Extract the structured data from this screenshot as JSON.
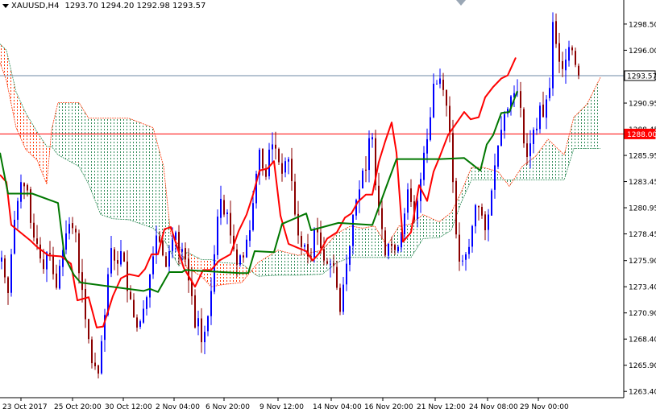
{
  "header": {
    "symbol": "XAUUSD,H4",
    "ohlc": "1293.70 1294.20 1292.98 1293.57"
  },
  "chart_data": {
    "type": "candlestick",
    "symbol": "XAUUSD",
    "timeframe": "H4",
    "title": "XAUUSD,H4",
    "ohlc_last": {
      "open": 1293.7,
      "high": 1294.2,
      "low": 1292.98,
      "close": 1293.57
    },
    "ylim": [
      1262.8,
      1300.8
    ],
    "y_ticks": [
      "1298.50",
      "1296.00",
      "1293.45",
      "1290.95",
      "1288.45",
      "1285.95",
      "1283.45",
      "1280.95",
      "1278.45",
      "1275.90",
      "1273.40",
      "1270.90",
      "1268.40",
      "1265.90",
      "1263.40"
    ],
    "x_ticks": [
      "23 Oct 2017",
      "25 Oct 20:00",
      "30 Oct 12:00",
      "2 Nov 04:00",
      "6 Nov 20:00",
      "9 Nov 12:00",
      "14 Nov 04:00",
      "16 Nov 20:00",
      "21 Nov 12:00",
      "24 Nov 08:00",
      "29 Nov 00:00"
    ],
    "price_lines": [
      {
        "label": "1293.57",
        "value": 1293.57,
        "color": "#6e8aa5",
        "kind": "bid"
      },
      {
        "label": "1288.00",
        "value": 1288.0,
        "color": "#ff0000",
        "kind": "horizontal"
      }
    ],
    "close": [
      1276.2,
      1274.3,
      1272.8,
      1276.5,
      1279.8,
      1281.6,
      1283.4,
      1283.0,
      1282.6,
      1279.5,
      1278.1,
      1277.5,
      1276.1,
      1275.1,
      1276.7,
      1276.5,
      1274.6,
      1273.3,
      1275.4,
      1276.9,
      1278.5,
      1279.4,
      1279.0,
      1278.6,
      1274.7,
      1273.1,
      1270.3,
      1268.4,
      1266.1,
      1265.8,
      1265.1,
      1268.2,
      1270.7,
      1274.6,
      1277.1,
      1275.9,
      1275.6,
      1276.8,
      1275.8,
      1273.0,
      1272.2,
      1270.5,
      1269.5,
      1270.1,
      1271.3,
      1272.4,
      1274.6,
      1276.3,
      1278.3,
      1277.7,
      1276.4,
      1275.3,
      1276.8,
      1277.9,
      1278.6,
      1276.7,
      1277.0,
      1276.0,
      1274.0,
      1272.5,
      1269.5,
      1270.4,
      1268.1,
      1269.1,
      1270.6,
      1273.0,
      1276.5,
      1280.1,
      1281.8,
      1280.3,
      1280.5,
      1278.3,
      1277.0,
      1275.5,
      1276.4,
      1276.2,
      1277.9,
      1278.8,
      1281.4,
      1284.2,
      1286.5,
      1284.7,
      1283.9,
      1286.5,
      1287.0,
      1286.6,
      1285.3,
      1284.2,
      1285.4,
      1285.6,
      1283.5,
      1280.3,
      1278.3,
      1277.2,
      1277.4,
      1276.3,
      1276.3,
      1278.9,
      1278.6,
      1277.1,
      1275.9,
      1275.6,
      1275.6,
      1275.4,
      1273.3,
      1271.0,
      1273.6,
      1275.6,
      1277.3,
      1280.3,
      1281.7,
      1282.7,
      1284.5,
      1284.5,
      1287.6,
      1287.7,
      1283.1,
      1281.0,
      1278.9,
      1276.4,
      1277.5,
      1277.3,
      1276.9,
      1277.2,
      1278.5,
      1280.4,
      1282.7,
      1281.5,
      1279.8,
      1281.6,
      1283.7,
      1286.2,
      1287.5,
      1289.6,
      1292.8,
      1292.8,
      1293.3,
      1292.2,
      1290.7,
      1288.2,
      1283.4,
      1278.4,
      1275.8,
      1275.9,
      1276.5,
      1277.2,
      1279.2,
      1281.2,
      1281.0,
      1280.2,
      1278.8,
      1280.3,
      1282.6,
      1285.0,
      1286.9,
      1288.4,
      1289.9,
      1290.4,
      1291.6,
      1291.9,
      1292.0,
      1290.5,
      1287.1,
      1285.8,
      1287.1,
      1288.4,
      1288.5,
      1290.7,
      1289.6,
      1291.3,
      1292.4,
      1298.7,
      1296.6,
      1294.9,
      1294.2,
      1295.1,
      1296.3,
      1296.0,
      1294.6,
      1293.6
    ],
    "kumo": [
      {
        "x": 0.0,
        "a": 1294.8,
        "b": 1296.6
      },
      {
        "x": 8.0,
        "a": 1293.1,
        "b": 1296.0
      },
      {
        "x": 20.0,
        "a": 1288.6,
        "b": 1292.0
      },
      {
        "x": 32.0,
        "a": 1286.5,
        "b": 1290.0
      },
      {
        "x": 46.0,
        "a": 1285.5,
        "b": 1288.2
      },
      {
        "x": 58.0,
        "a": 1283.2,
        "b": 1286.8
      },
      {
        "x": 64.0,
        "a": 1288.4,
        "b": 1286.8
      },
      {
        "x": 72.0,
        "a": 1291.0,
        "b": 1286.0
      },
      {
        "x": 98.0,
        "a": 1291.0,
        "b": 1284.9
      },
      {
        "x": 110.0,
        "a": 1289.5,
        "b": 1283.2
      },
      {
        "x": 125.0,
        "a": 1289.5,
        "b": 1280.3
      },
      {
        "x": 140.0,
        "a": 1289.5,
        "b": 1279.9
      },
      {
        "x": 160.0,
        "a": 1289.5,
        "b": 1279.8
      },
      {
        "x": 190.0,
        "a": 1288.6,
        "b": 1279.0
      },
      {
        "x": 203.0,
        "a": 1284.9,
        "b": 1278.0
      },
      {
        "x": 212.0,
        "a": 1278.3,
        "b": 1276.7
      },
      {
        "x": 222.0,
        "a": 1277.4,
        "b": 1275.4
      },
      {
        "x": 232.0,
        "a": 1275.2,
        "b": 1276.7
      },
      {
        "x": 250.0,
        "a": 1274.4,
        "b": 1276.0
      },
      {
        "x": 262.0,
        "a": 1273.4,
        "b": 1276.0
      },
      {
        "x": 276.0,
        "a": 1273.6,
        "b": 1275.7
      },
      {
        "x": 300.0,
        "a": 1273.8,
        "b": 1275.6
      },
      {
        "x": 320.0,
        "a": 1275.7,
        "b": 1274.4
      },
      {
        "x": 345.0,
        "a": 1276.9,
        "b": 1274.5
      },
      {
        "x": 370.0,
        "a": 1276.4,
        "b": 1274.5
      },
      {
        "x": 400.0,
        "a": 1276.9,
        "b": 1274.6
      },
      {
        "x": 418.0,
        "a": 1278.5,
        "b": 1275.7
      },
      {
        "x": 435.0,
        "a": 1279.2,
        "b": 1276.2
      },
      {
        "x": 450.0,
        "a": 1279.0,
        "b": 1276.2
      },
      {
        "x": 465.0,
        "a": 1279.2,
        "b": 1276.2
      },
      {
        "x": 480.0,
        "a": 1277.3,
        "b": 1276.2
      },
      {
        "x": 495.0,
        "a": 1279.2,
        "b": 1276.2
      },
      {
        "x": 510.0,
        "a": 1279.4,
        "b": 1276.2
      },
      {
        "x": 525.0,
        "a": 1280.3,
        "b": 1278.0
      },
      {
        "x": 545.0,
        "a": 1279.6,
        "b": 1278.1
      },
      {
        "x": 560.0,
        "a": 1280.5,
        "b": 1278.8
      },
      {
        "x": 572.0,
        "a": 1282.4,
        "b": 1281.4
      },
      {
        "x": 585.0,
        "a": 1284.8,
        "b": 1283.6
      },
      {
        "x": 600.0,
        "a": 1284.8,
        "b": 1283.6
      },
      {
        "x": 618.0,
        "a": 1284.4,
        "b": 1283.6
      },
      {
        "x": 632.0,
        "a": 1283.0,
        "b": 1283.6
      },
      {
        "x": 648.0,
        "a": 1284.9,
        "b": 1283.6
      },
      {
        "x": 665.0,
        "a": 1285.9,
        "b": 1283.6
      },
      {
        "x": 680.0,
        "a": 1287.5,
        "b": 1283.6
      },
      {
        "x": 700.0,
        "a": 1286.0,
        "b": 1283.6
      },
      {
        "x": 712.0,
        "a": 1289.6,
        "b": 1286.6
      },
      {
        "x": 728.0,
        "a": 1290.8,
        "b": 1286.6
      },
      {
        "x": 745.0,
        "a": 1293.4,
        "b": 1286.6
      }
    ],
    "tenkan": [
      [
        0.0,
        1284.1
      ],
      [
        8.0,
        1283.4
      ],
      [
        14.0,
        1279.3
      ],
      [
        38.0,
        1277.8
      ],
      [
        46.0,
        1277.2
      ],
      [
        60.0,
        1276.4
      ],
      [
        76.0,
        1276.3
      ],
      [
        88.0,
        1275.6
      ],
      [
        96.0,
        1272.1
      ],
      [
        110.0,
        1272.4
      ],
      [
        120.0,
        1269.5
      ],
      [
        128.0,
        1269.6
      ],
      [
        140.0,
        1272.5
      ],
      [
        150.0,
        1274.2
      ],
      [
        160.0,
        1274.6
      ],
      [
        172.0,
        1274.4
      ],
      [
        180.0,
        1275.1
      ],
      [
        188.0,
        1276.5
      ],
      [
        196.0,
        1276.5
      ],
      [
        204.0,
        1278.9
      ],
      [
        212.0,
        1279.1
      ],
      [
        228.0,
        1275.2
      ],
      [
        242.0,
        1273.4
      ],
      [
        252.0,
        1275.0
      ],
      [
        262.0,
        1275.0
      ],
      [
        272.0,
        1275.9
      ],
      [
        286.0,
        1276.5
      ],
      [
        296.0,
        1278.7
      ],
      [
        306.0,
        1280.3
      ],
      [
        314.0,
        1282.2
      ],
      [
        322.0,
        1284.5
      ],
      [
        332.0,
        1284.7
      ],
      [
        340.0,
        1285.4
      ],
      [
        348.0,
        1280.2
      ],
      [
        358.0,
        1277.5
      ],
      [
        370.0,
        1277.1
      ],
      [
        380.0,
        1276.8
      ],
      [
        388.0,
        1275.9
      ],
      [
        396.0,
        1276.6
      ],
      [
        406.0,
        1278.0
      ],
      [
        418.0,
        1278.6
      ],
      [
        428.0,
        1280.0
      ],
      [
        436.0,
        1280.4
      ],
      [
        444.0,
        1281.5
      ],
      [
        454.0,
        1282.2
      ],
      [
        462.0,
        1282.2
      ],
      [
        470.0,
        1285.3
      ],
      [
        478.0,
        1287.3
      ],
      [
        486.0,
        1289.1
      ],
      [
        492.0,
        1286.2
      ],
      [
        500.0,
        1277.7
      ],
      [
        510.0,
        1278.6
      ],
      [
        520.0,
        1283.1
      ],
      [
        530.0,
        1281.6
      ],
      [
        538.0,
        1284.4
      ],
      [
        546.0,
        1285.9
      ],
      [
        556.0,
        1287.9
      ],
      [
        566.0,
        1289.0
      ],
      [
        576.0,
        1290.1
      ],
      [
        584.0,
        1289.4
      ],
      [
        594.0,
        1289.6
      ],
      [
        602.0,
        1291.5
      ],
      [
        612.0,
        1292.5
      ],
      [
        622.0,
        1293.3
      ],
      [
        630.0,
        1293.6
      ],
      [
        640.0,
        1295.3
      ]
    ],
    "kijun": [
      [
        0.0,
        1286.2
      ],
      [
        10.0,
        1282.3
      ],
      [
        40.0,
        1282.3
      ],
      [
        72.0,
        1281.4
      ],
      [
        80.0,
        1276.3
      ],
      [
        92.0,
        1274.5
      ],
      [
        100.0,
        1273.8
      ],
      [
        178.0,
        1273.0
      ],
      [
        186.0,
        1273.2
      ],
      [
        196.0,
        1272.9
      ],
      [
        210.0,
        1274.8
      ],
      [
        226.0,
        1274.8
      ],
      [
        230.0,
        1275.0
      ],
      [
        298.0,
        1274.7
      ],
      [
        308.0,
        1274.7
      ],
      [
        316.0,
        1276.8
      ],
      [
        340.0,
        1276.7
      ],
      [
        350.0,
        1279.4
      ],
      [
        380.0,
        1280.4
      ],
      [
        386.0,
        1278.8
      ],
      [
        420.0,
        1279.5
      ],
      [
        462.0,
        1279.3
      ],
      [
        480.0,
        1283.1
      ],
      [
        492.0,
        1285.6
      ],
      [
        546.0,
        1285.6
      ],
      [
        576.0,
        1285.7
      ],
      [
        596.0,
        1284.5
      ],
      [
        604.0,
        1287.0
      ],
      [
        612.0,
        1287.9
      ],
      [
        622.0,
        1290.0
      ],
      [
        632.0,
        1290.1
      ],
      [
        642.0,
        1292.1
      ]
    ],
    "colors": {
      "bull_candle": "#0000ff",
      "bear_candle": "#8b0000",
      "tenkan": "#ff0000",
      "kijun": "#007700",
      "kumo_bullish": "#2e8b57",
      "kumo_bearish": "#ff3300",
      "grid": "#c8c8c8",
      "axis": "#000000"
    },
    "grid": false
  }
}
